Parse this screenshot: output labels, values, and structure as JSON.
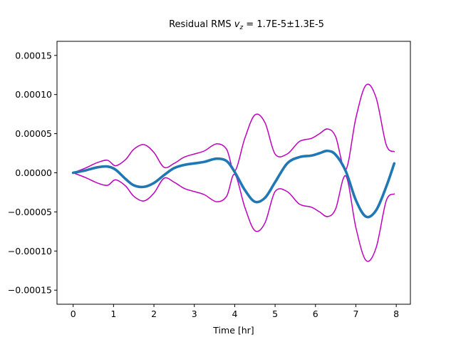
{
  "chart_data": {
    "type": "line",
    "title_prefix": "Residual RMS ",
    "title_var": "v",
    "title_sub": "z",
    "title_suffix": " = 1.7E-5±1.3E-5",
    "xlabel": "Time [hr]",
    "ylabel": "",
    "xlim": [
      -0.4,
      8.35
    ],
    "ylim": [
      -0.000168,
      0.000168
    ],
    "x_ticks": [
      0,
      1,
      2,
      3,
      4,
      5,
      6,
      7,
      8
    ],
    "x_tick_labels": [
      "0",
      "1",
      "2",
      "3",
      "4",
      "5",
      "6",
      "7",
      "8"
    ],
    "y_ticks": [
      -0.00015,
      -0.0001,
      -5e-05,
      0,
      5e-05,
      0.0001,
      0.00015
    ],
    "y_tick_labels": [
      "−0.00015",
      "−0.00010",
      "−0.00005",
      "0.00000",
      "0.00005",
      "0.00010",
      "0.00015"
    ],
    "grid": false,
    "series": [
      {
        "color": "#1f77b4",
        "x": [
          0,
          0.3,
          0.6,
          0.85,
          1.05,
          1.3,
          1.5,
          1.75,
          2.0,
          2.25,
          2.5,
          2.75,
          3.0,
          3.25,
          3.55,
          3.8,
          4.0,
          4.25,
          4.5,
          4.75,
          5.0,
          5.3,
          5.6,
          5.9,
          6.1,
          6.3,
          6.5,
          6.75,
          7.0,
          7.25,
          7.5,
          7.75,
          7.95
        ],
        "y": [
          0,
          3e-06,
          7e-06,
          8e-06,
          4e-06,
          -8e-06,
          -1.6e-05,
          -1.8e-05,
          -1.3e-05,
          -3e-06,
          6e-06,
          1e-05,
          1.2e-05,
          1.4e-05,
          1.8e-05,
          1.5e-05,
          1e-06,
          -2.2e-05,
          -3.7e-05,
          -3.2e-05,
          -1.2e-05,
          1.2e-05,
          2e-05,
          2.2e-05,
          2.5e-05,
          2.8e-05,
          2.3e-05,
          2e-06,
          -3.5e-05,
          -5.6e-05,
          -4.8e-05,
          -1.8e-05,
          1.2e-05
        ]
      },
      {
        "color": "#bf00bf",
        "x": [
          0,
          0.3,
          0.6,
          0.85,
          1.05,
          1.3,
          1.5,
          1.75,
          2.0,
          2.25,
          2.5,
          2.75,
          3.0,
          3.25,
          3.55,
          3.8,
          4.0,
          4.25,
          4.5,
          4.75,
          5.0,
          5.3,
          5.6,
          5.9,
          6.1,
          6.3,
          6.5,
          6.75,
          7.0,
          7.25,
          7.5,
          7.75,
          7.95
        ],
        "y": [
          0,
          6e-06,
          1.3e-05,
          1.6e-05,
          9e-06,
          1.7e-05,
          3e-05,
          3.6e-05,
          2.6e-05,
          7e-06,
          1.2e-05,
          2e-05,
          2.4e-05,
          2.8e-05,
          3.7e-05,
          3e-05,
          2e-06,
          4.4e-05,
          7.4e-05,
          6.4e-05,
          2.4e-05,
          2.4e-05,
          4e-05,
          4.4e-05,
          5e-05,
          5.6e-05,
          4.6e-05,
          4e-06,
          7e-05,
          0.000112,
          9.6e-05,
          3.6e-05,
          2.7e-05
        ]
      },
      {
        "color": "#bf00bf",
        "x": [
          0,
          0.3,
          0.6,
          0.85,
          1.05,
          1.3,
          1.5,
          1.75,
          2.0,
          2.25,
          2.5,
          2.75,
          3.0,
          3.25,
          3.55,
          3.8,
          4.0,
          4.25,
          4.5,
          4.75,
          5.0,
          5.3,
          5.6,
          5.9,
          6.1,
          6.3,
          6.5,
          6.75,
          7.0,
          7.25,
          7.5,
          7.75,
          7.95
        ],
        "y": [
          0,
          -6e-06,
          -1.3e-05,
          -1.6e-05,
          -9e-06,
          -1.7e-05,
          -3e-05,
          -3.6e-05,
          -2.6e-05,
          -7e-06,
          -1.2e-05,
          -2e-05,
          -2.4e-05,
          -2.8e-05,
          -3.7e-05,
          -3e-05,
          -2e-06,
          -4.4e-05,
          -7.4e-05,
          -6.4e-05,
          -2.4e-05,
          -2.4e-05,
          -4e-05,
          -4.4e-05,
          -5e-05,
          -5.6e-05,
          -4.6e-05,
          -4e-06,
          -7e-05,
          -0.000112,
          -9.6e-05,
          -3.6e-05,
          -2.7e-05
        ]
      }
    ]
  }
}
